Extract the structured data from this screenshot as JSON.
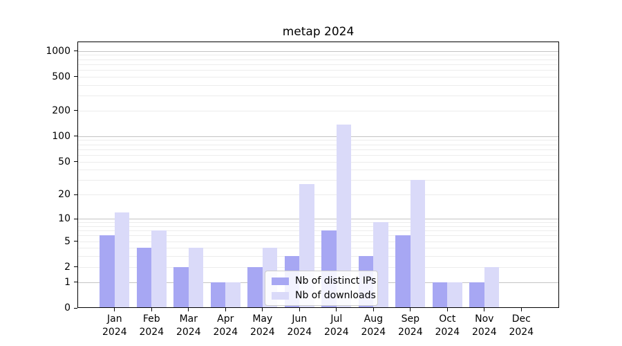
{
  "title": "metap 2024",
  "chart_data": {
    "type": "bar",
    "title": "metap 2024",
    "categories": [
      "Jan 2024",
      "Feb 2024",
      "Mar 2024",
      "Apr 2024",
      "May 2024",
      "Jun 2024",
      "Jul 2024",
      "Aug 2024",
      "Sep 2024",
      "Oct 2024",
      "Nov 2024",
      "Dec 2024"
    ],
    "series": [
      {
        "name": "Nb of distinct IPs",
        "color": "#a7a7f3",
        "values": [
          6,
          4,
          2,
          1,
          2,
          3,
          7,
          3,
          6,
          1,
          1,
          0
        ]
      },
      {
        "name": "Nb of downloads",
        "color": "#dadaf9",
        "values": [
          12,
          7,
          4,
          1,
          4,
          27,
          136,
          9,
          30,
          1,
          2,
          0
        ]
      }
    ],
    "xlabel": "",
    "ylabel": "",
    "yscale": "log1p",
    "ylim": [
      0,
      1270
    ],
    "yticks": [
      0,
      1,
      2,
      5,
      10,
      20,
      50,
      100,
      200,
      500,
      1000
    ],
    "grid": {
      "major_lines": [
        1,
        10,
        100,
        1000
      ],
      "minor_mantissas": [
        2,
        3,
        4,
        5,
        6,
        7,
        8,
        9
      ],
      "minor_decades": [
        1,
        10,
        100
      ]
    },
    "legend_position": "lower-center",
    "colors": {
      "major_grid": "#c3c3c3",
      "minor_grid": "#ececec",
      "spine": "#000000"
    }
  }
}
